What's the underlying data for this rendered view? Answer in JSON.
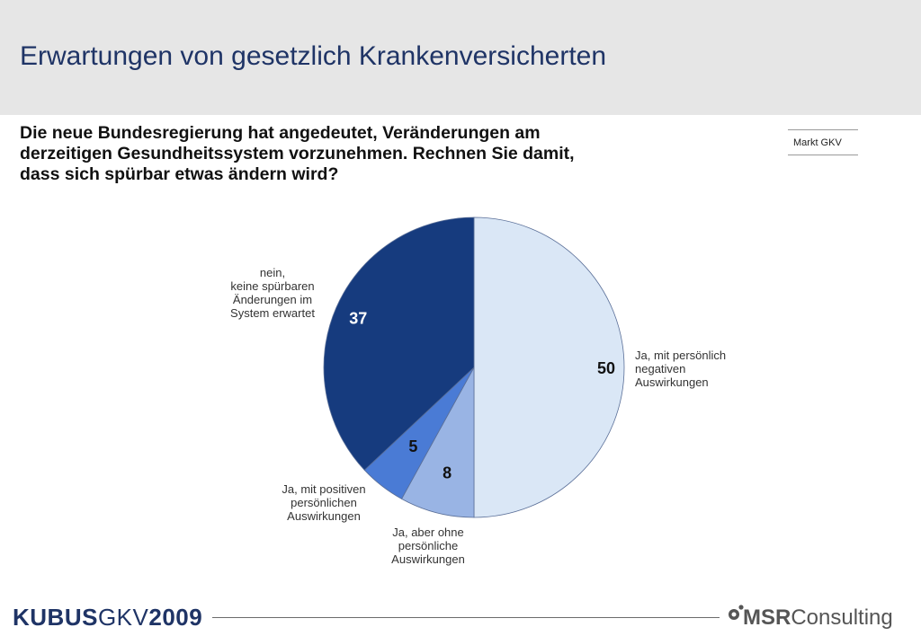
{
  "header": {
    "title": "Erwartungen von gesetzlich Krankenversicherten"
  },
  "question": {
    "lines": [
      "Die neue Bundesregierung hat angedeutet, Veränderungen am",
      "derzeitigen Gesundheitssystem vorzunehmen. Rechnen Sie damit,",
      "dass sich spürbar etwas ändern wird?"
    ]
  },
  "market_tag": "Markt GKV",
  "chart_data": {
    "type": "pie",
    "slices": [
      {
        "label_lines": [
          "Ja, mit persönlich",
          "negativen",
          "Auswirkungen"
        ],
        "value": 50,
        "color": "#dae7f6",
        "value_color": "#111111"
      },
      {
        "label_lines": [
          "Ja, aber ohne",
          "persönliche",
          "Auswirkungen"
        ],
        "value": 8,
        "color": "#99b4e4",
        "value_color": "#111111"
      },
      {
        "label_lines": [
          "Ja, mit positiven",
          "persönlichen",
          "Auswirkungen"
        ],
        "value": 5,
        "color": "#4a7bd5",
        "value_color": "#111111"
      },
      {
        "label_lines": [
          "nein,",
          "keine spürbaren",
          "Änderungen im",
          "System erwartet"
        ],
        "value": 37,
        "color": "#163b7e",
        "value_color": "#ffffff"
      }
    ]
  },
  "footer": {
    "left_brand": {
      "part1": "KUBUS",
      "part2": "GKV",
      "part3": "2009"
    },
    "right_brand": {
      "part1": "MSR",
      "part2": "Consulting"
    },
    "brand_color": "#1f3466"
  }
}
